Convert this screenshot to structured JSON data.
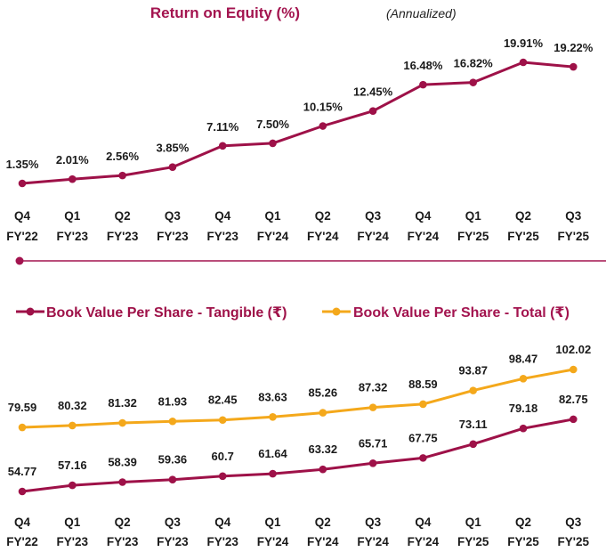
{
  "colors": {
    "roe": "#9e1148",
    "tangible": "#9e1148",
    "total": "#f4a81b",
    "title": "#a3144f"
  },
  "chart_data": [
    {
      "type": "line",
      "title": "Return on Equity (%)",
      "subtitle": "(Annualized)",
      "categories": [
        [
          "Q4",
          "FY'22"
        ],
        [
          "Q1",
          "FY'23"
        ],
        [
          "Q2",
          "FY'23"
        ],
        [
          "Q3",
          "FY'23"
        ],
        [
          "Q4",
          "FY'23"
        ],
        [
          "Q1",
          "FY'24"
        ],
        [
          "Q2",
          "FY'24"
        ],
        [
          "Q3",
          "FY'24"
        ],
        [
          "Q4",
          "FY'24"
        ],
        [
          "Q1",
          "FY'25"
        ],
        [
          "Q2",
          "FY'25"
        ],
        [
          "Q3",
          "FY'25"
        ]
      ],
      "series": [
        {
          "values": [
            1.35,
            2.01,
            2.56,
            3.85,
            7.11,
            7.5,
            10.15,
            12.45,
            16.48,
            16.82,
            19.91,
            19.22
          ],
          "labels": [
            "1.35%",
            "2.01%",
            "2.56%",
            "3.85%",
            "7.11%",
            "7.50%",
            "10.15%",
            "12.45%",
            "16.48%",
            "16.82%",
            "19.91%",
            "19.22%"
          ]
        }
      ],
      "grid": false
    },
    {
      "type": "line",
      "categories": [
        [
          "Q4",
          "FY'22"
        ],
        [
          "Q1",
          "FY'23"
        ],
        [
          "Q2",
          "FY'23"
        ],
        [
          "Q3",
          "FY'23"
        ],
        [
          "Q4",
          "FY'23"
        ],
        [
          "Q1",
          "FY'24"
        ],
        [
          "Q2",
          "FY'24"
        ],
        [
          "Q3",
          "FY'24"
        ],
        [
          "Q4",
          "FY'24"
        ],
        [
          "Q1",
          "FY'25"
        ],
        [
          "Q2",
          "FY'25"
        ],
        [
          "Q3",
          "FY'25"
        ]
      ],
      "legend_position": "top",
      "series": [
        {
          "name": "Book Value Per Share - Tangible (₹)",
          "values": [
            54.77,
            57.16,
            58.39,
            59.36,
            60.7,
            61.64,
            63.32,
            65.71,
            67.75,
            73.11,
            79.18,
            82.75
          ],
          "labels": [
            "54.77",
            "57.16",
            "58.39",
            "59.36",
            "60.7",
            "61.64",
            "63.32",
            "65.71",
            "67.75",
            "73.11",
            "79.18",
            "82.75"
          ]
        },
        {
          "name": "Book Value Per Share - Total (₹)",
          "values": [
            79.59,
            80.32,
            81.32,
            81.93,
            82.45,
            83.63,
            85.26,
            87.32,
            88.59,
            93.87,
            98.47,
            102.02
          ],
          "labels": [
            "79.59",
            "80.32",
            "81.32",
            "81.93",
            "82.45",
            "83.63",
            "85.26",
            "87.32",
            "88.59",
            "93.87",
            "98.47",
            "102.02"
          ]
        }
      ],
      "grid": false
    }
  ]
}
